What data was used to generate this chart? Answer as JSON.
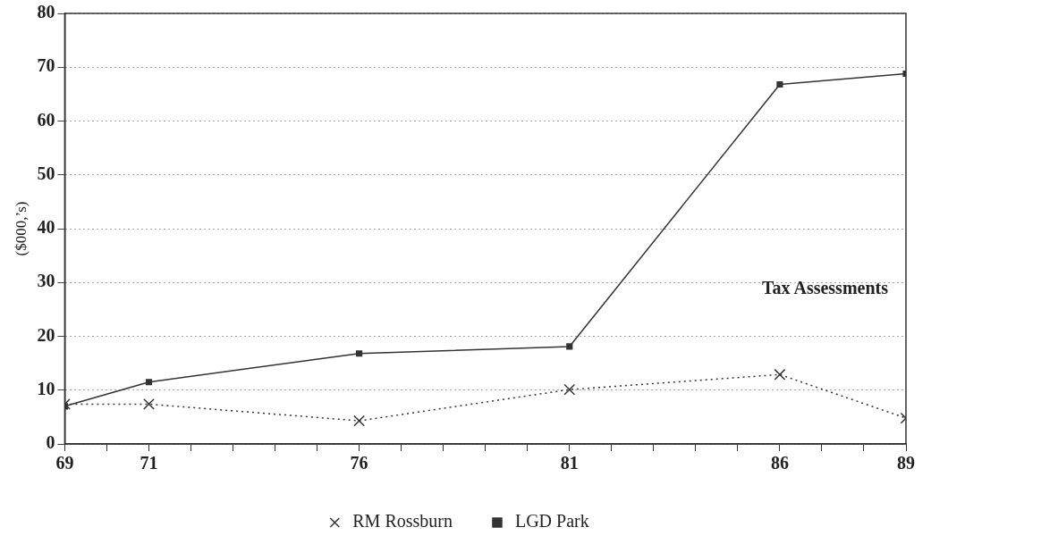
{
  "chart_data": {
    "type": "line",
    "x": [
      69,
      71,
      76,
      81,
      86,
      89
    ],
    "series": [
      {
        "name": "LGD Park",
        "color": "#333333",
        "values": [
          7.0,
          11.5,
          16.8,
          18.1,
          66.8,
          68.8
        ],
        "marker": "square",
        "line_style": "solid"
      },
      {
        "name": "RM Rossburn",
        "color": "#333333",
        "values": [
          7.4,
          7.4,
          4.3,
          10.1,
          12.9,
          4.8
        ],
        "marker": "cross",
        "line_style": "dotted"
      }
    ],
    "ylabel": "($000,’s)",
    "annotations": [
      "Tax Assessments"
    ],
    "xlim": [
      69,
      89
    ],
    "xticks": [
      69,
      {
        "value": 70,
        "label": null
      },
      71,
      {
        "value": 72,
        "label": null
      },
      {
        "value": 73,
        "label": null
      },
      {
        "value": 74,
        "label": null
      },
      {
        "value": 75,
        "label": null
      },
      76,
      {
        "value": 77,
        "label": null
      },
      {
        "value": 78,
        "label": null
      },
      {
        "value": 79,
        "label": null
      },
      {
        "value": 80,
        "label": null
      },
      81,
      {
        "value": 82,
        "label": null
      },
      {
        "value": 83,
        "label": null
      },
      {
        "value": 84,
        "label": null
      },
      {
        "value": 85,
        "label": null
      },
      86,
      {
        "value": 87,
        "label": null
      },
      {
        "value": 88,
        "label": null
      },
      89
    ],
    "ylim": [
      0,
      80
    ],
    "yticks": [
      0,
      10,
      20,
      30,
      40,
      50,
      60,
      70,
      80
    ],
    "grid": "y",
    "legend": "bottom"
  }
}
